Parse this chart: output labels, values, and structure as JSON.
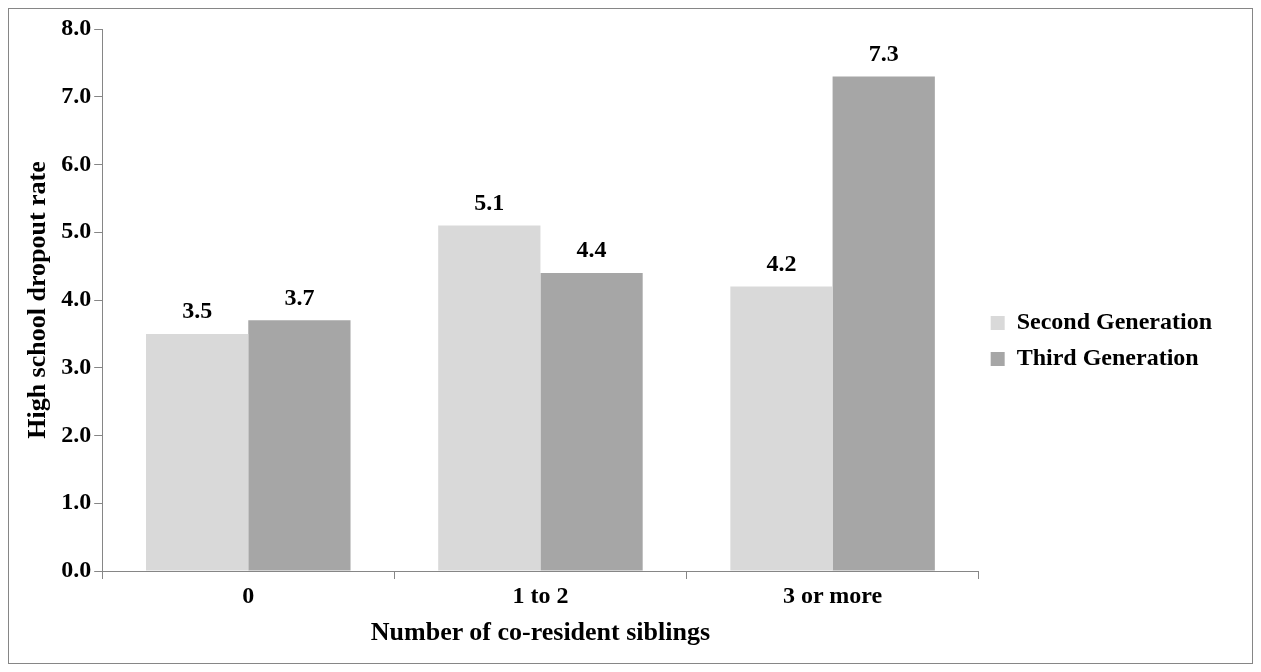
{
  "chart_data": {
    "type": "bar",
    "xlabel": "Number of co-resident siblings",
    "ylabel": "High school dropout rate",
    "categories": [
      "0",
      "1 to 2",
      "3 or more"
    ],
    "series": [
      {
        "name": "Second Generation",
        "color": "#d9d9d9",
        "values": [
          3.5,
          5.1,
          4.2
        ]
      },
      {
        "name": "Third Generation",
        "color": "#a6a6a6",
        "values": [
          3.7,
          4.4,
          7.3
        ]
      }
    ],
    "ylim": [
      0,
      8
    ],
    "yticks": [
      {
        "value": 0,
        "label": "0.0"
      },
      {
        "value": 1,
        "label": "1.0"
      },
      {
        "value": 2,
        "label": "2.0"
      },
      {
        "value": 3,
        "label": "3.0"
      },
      {
        "value": 4,
        "label": "4.0"
      },
      {
        "value": 5,
        "label": "5.0"
      },
      {
        "value": 6,
        "label": "6.0"
      },
      {
        "value": 7,
        "label": "7.0"
      },
      {
        "value": 8,
        "label": "8.0"
      }
    ],
    "legend": "right",
    "data_labels": true
  }
}
